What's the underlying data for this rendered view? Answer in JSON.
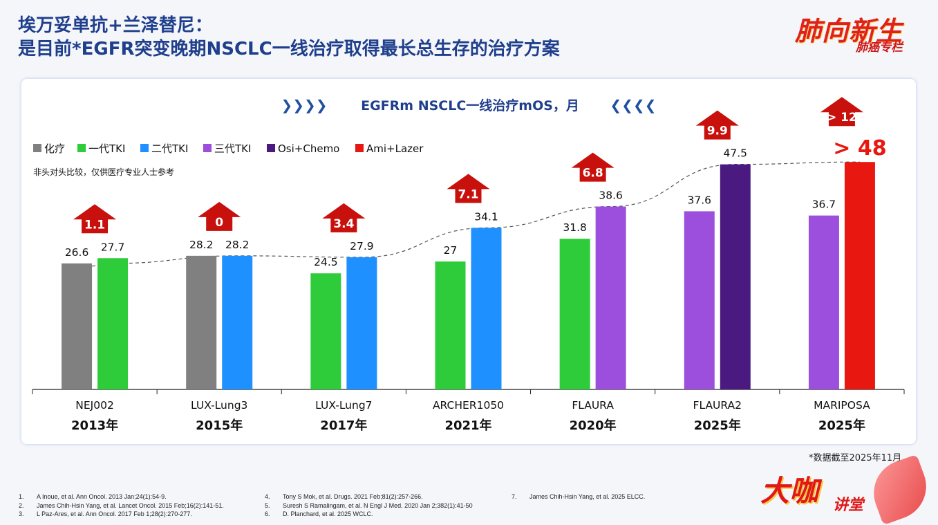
{
  "header": {
    "title_line1": "埃万妥单抗+兰泽替尼：",
    "title_line2": "是目前*EGFR突变晚期NSCLC一线治疗取得最长总生存的治疗方案"
  },
  "brand": {
    "main": "肺向新生",
    "sub": "肺癌专栏"
  },
  "footer": {
    "cutoff": "*数据截至2025年11月",
    "brand_main": "大咖",
    "brand_sub": "讲堂",
    "references": [
      {
        "n": "1.",
        "text": "A Inoue, et al. Ann Oncol. 2013 Jan;24(1):54-9."
      },
      {
        "n": "2.",
        "text": "James Chih-Hsin Yang, et al. Lancet Oncol. 2015 Feb;16(2):141-51."
      },
      {
        "n": "3.",
        "text": "L Paz-Ares, et al. Ann Oncol. 2017 Feb 1;28(2):270-277."
      },
      {
        "n": "4.",
        "text": "Tony S Mok, et al. Drugs. 2021 Feb;81(2):257-266."
      },
      {
        "n": "5.",
        "text": "Suresh S Ramalingam, et al. N Engl J Med. 2020 Jan 2;382(1):41-50"
      },
      {
        "n": "6.",
        "text": "D. Planchard, et al. 2025 WCLC."
      },
      {
        "n": "7.",
        "text": "James Chih-Hsin Yang, et al. 2025 ELCC."
      }
    ]
  },
  "chart_data": {
    "type": "bar",
    "title": "EGFRm NSCLC一线治疗mOS，月",
    "title_deco_left": "❯❯❯❯",
    "title_deco_right": "❮❮❮❮",
    "note": "非头对头比较，仅供医疗专业人士参考",
    "ylim": [
      0,
      50
    ],
    "legend": [
      {
        "name": "化疗",
        "color": "#808080"
      },
      {
        "name": "一代TKI",
        "color": "#2ecc3a"
      },
      {
        "name": "二代TKI",
        "color": "#1e90ff"
      },
      {
        "name": "三代TKI",
        "color": "#9c4fdc"
      },
      {
        "name": "Osi+Chemo",
        "color": "#4b1a80"
      },
      {
        "name": "Ami+Lazer",
        "color": "#e8170f"
      }
    ],
    "groups": [
      {
        "trial": "NEJ002",
        "year": "2013年",
        "delta": "1.1",
        "bars": [
          {
            "series": 0,
            "value": 26.6,
            "label": "26.6"
          },
          {
            "series": 1,
            "value": 27.7,
            "label": "27.7"
          }
        ]
      },
      {
        "trial": "LUX-Lung3",
        "year": "2015年",
        "delta": "0",
        "bars": [
          {
            "series": 0,
            "value": 28.2,
            "label": "28.2"
          },
          {
            "series": 2,
            "value": 28.2,
            "label": "28.2"
          }
        ]
      },
      {
        "trial": "LUX-Lung7",
        "year": "2017年",
        "delta": "3.4",
        "bars": [
          {
            "series": 1,
            "value": 24.5,
            "label": "24.5"
          },
          {
            "series": 2,
            "value": 27.9,
            "label": "27.9"
          }
        ]
      },
      {
        "trial": "ARCHER1050",
        "year": "2021年",
        "delta": "7.1",
        "bars": [
          {
            "series": 1,
            "value": 27,
            "label": "27"
          },
          {
            "series": 2,
            "value": 34.1,
            "label": "34.1"
          }
        ]
      },
      {
        "trial": "FLAURA",
        "year": "2020年",
        "delta": "6.8",
        "bars": [
          {
            "series": 1,
            "value": 31.8,
            "label": "31.8"
          },
          {
            "series": 3,
            "value": 38.6,
            "label": "38.6"
          }
        ]
      },
      {
        "trial": "FLAURA2",
        "year": "2025年",
        "delta": "9.9",
        "bars": [
          {
            "series": 3,
            "value": 37.6,
            "label": "37.6"
          },
          {
            "series": 4,
            "value": 47.5,
            "label": "47.5"
          }
        ]
      },
      {
        "trial": "MARIPOSA",
        "year": "2025年",
        "delta": "> 12",
        "bars": [
          {
            "series": 3,
            "value": 36.7,
            "label": "36.7"
          },
          {
            "series": 5,
            "value": 48,
            "label": "> 48",
            "highlight": true
          }
        ]
      }
    ],
    "trend": [
      26.6,
      28.2,
      27.9,
      34.1,
      38.6,
      47.5,
      48
    ]
  }
}
